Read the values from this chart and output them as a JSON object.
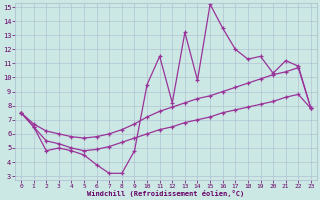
{
  "xlabel": "Windchill (Refroidissement éolien,°C)",
  "background_color": "#cce8e4",
  "grid_color": "#aabbcc",
  "line_color": "#993399",
  "hours": [
    0,
    1,
    2,
    3,
    4,
    5,
    6,
    7,
    8,
    9,
    10,
    11,
    12,
    13,
    14,
    15,
    16,
    17,
    18,
    19,
    20,
    21,
    22,
    23
  ],
  "line1": [
    7.5,
    6.5,
    4.8,
    5.0,
    4.8,
    4.5,
    3.8,
    3.2,
    3.2,
    4.8,
    9.5,
    11.5,
    8.2,
    13.2,
    9.8,
    15.2,
    13.5,
    12.0,
    11.3,
    11.5,
    10.3,
    11.2,
    10.8,
    7.8
  ],
  "trend_upper": [
    7.5,
    6.7,
    6.2,
    6.0,
    5.8,
    5.7,
    5.8,
    6.0,
    6.3,
    6.7,
    7.2,
    7.6,
    7.9,
    8.2,
    8.5,
    8.7,
    9.0,
    9.3,
    9.6,
    9.9,
    10.2,
    10.4,
    10.7,
    7.8
  ],
  "trend_lower": [
    7.5,
    6.5,
    5.5,
    5.3,
    5.0,
    4.8,
    4.9,
    5.1,
    5.4,
    5.7,
    6.0,
    6.3,
    6.5,
    6.8,
    7.0,
    7.2,
    7.5,
    7.7,
    7.9,
    8.1,
    8.3,
    8.6,
    8.8,
    7.8
  ],
  "ylim": [
    3,
    15
  ],
  "yticks": [
    3,
    4,
    5,
    6,
    7,
    8,
    9,
    10,
    11,
    12,
    13,
    14,
    15
  ],
  "xticks": [
    0,
    1,
    2,
    3,
    4,
    5,
    6,
    7,
    8,
    9,
    10,
    11,
    12,
    13,
    14,
    15,
    16,
    17,
    18,
    19,
    20,
    21,
    22,
    23
  ]
}
